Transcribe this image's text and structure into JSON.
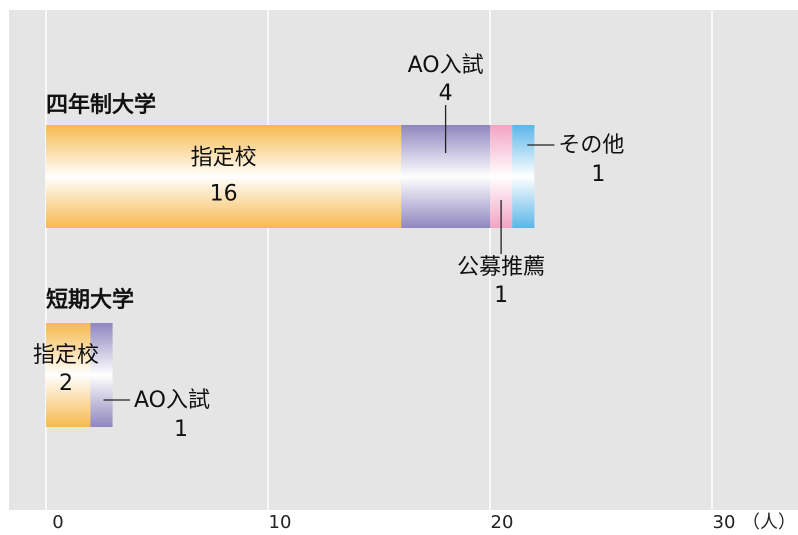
{
  "chart_data": {
    "type": "bar",
    "orientation": "horizontal",
    "stacked": true,
    "unit": "（人）",
    "xlim": [
      0,
      30
    ],
    "x_ticks": [
      "0",
      "10",
      "20",
      "30"
    ],
    "grid": true,
    "categories": [
      "四年制大学",
      "短期大学"
    ],
    "series": [
      {
        "name": "指定校",
        "values": [
          16,
          2
        ],
        "color": "#f7b94e"
      },
      {
        "name": "AO入試",
        "values": [
          4,
          1
        ],
        "color": "#8f86be"
      },
      {
        "name": "公募推薦",
        "values": [
          1,
          0
        ],
        "color": "#f3a3c2"
      },
      {
        "name": "その他",
        "values": [
          1,
          0
        ],
        "color": "#5bb6e8"
      }
    ],
    "annotations": [
      {
        "category": 0,
        "series": 0,
        "name": "指定校",
        "value": "16"
      },
      {
        "category": 0,
        "series": 1,
        "name": "AO入試",
        "value": "4"
      },
      {
        "category": 0,
        "series": 2,
        "name": "公募推薦",
        "value": "1"
      },
      {
        "category": 0,
        "series": 3,
        "name": "その他",
        "value": "1"
      },
      {
        "category": 1,
        "series": 0,
        "name": "指定校",
        "value": "2"
      },
      {
        "category": 1,
        "series": 1,
        "name": "AO入試",
        "value": "1"
      }
    ],
    "background_color": "#e5e5e5",
    "grid_color": "#ffffff"
  }
}
